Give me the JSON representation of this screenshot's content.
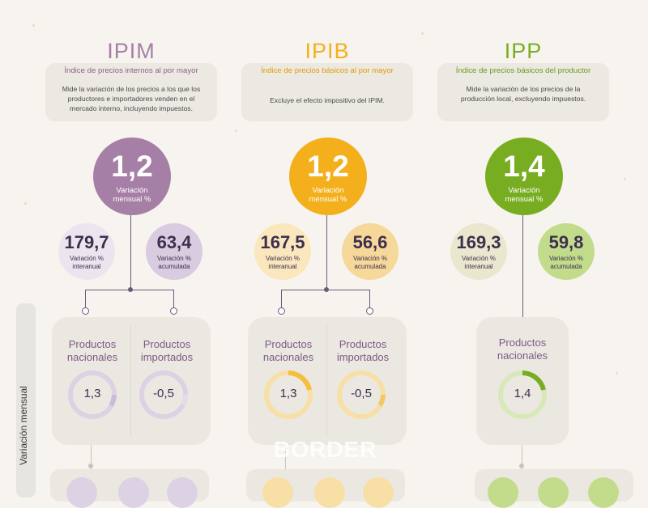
{
  "side_label": "Variación mensual",
  "watermark": "BORDER",
  "colors": {
    "ipim": "#a67fa6",
    "ipim_light": "#d9cbe0",
    "ipib": "#f4b01c",
    "ipib_light": "#f6d89a",
    "ipp": "#79ad21",
    "ipp_light": "#c3dc8c",
    "ipp_cream": "#eae7cf"
  },
  "ipim": {
    "title": "IPIM",
    "subtitle": "Índice de precios internos al por mayor",
    "desc": "Mide la variación de los precios a los que los productores e importadores venden en el mercado interno, incluyendo impuestos.",
    "main_value": "1,2",
    "main_label": "Variación mensual %",
    "interanual_value": "179,7",
    "interanual_label": "Variación % interanual",
    "acumulada_value": "63,4",
    "acumulada_label": "Variación % acumulada",
    "nacionales_label": "Productos nacionales",
    "nacionales_value": "1,3",
    "importados_label": "Productos importados",
    "importados_value": "-0,5"
  },
  "ipib": {
    "title": "IPIB",
    "subtitle": "Índice de precios básicos al por mayor",
    "desc": "Excluye el efecto impositivo del IPIM.",
    "main_value": "1,2",
    "main_label": "Variación mensual %",
    "interanual_value": "167,5",
    "interanual_label": "Variación % interanual",
    "acumulada_value": "56,6",
    "acumulada_label": "Variación % acumulada",
    "nacionales_label": "Productos nacionales",
    "nacionales_value": "1,3",
    "importados_label": "Productos importados",
    "importados_value": "-0,5"
  },
  "ipp": {
    "title": "IPP",
    "subtitle": "Índice de precios básicos del productor",
    "desc": "Mide la variación de los precios de la producción local, excluyendo impuestos.",
    "main_value": "1,4",
    "main_label": "Variación mensual %",
    "interanual_value": "169,3",
    "interanual_label": "Variación % interanual",
    "acumulada_value": "59,8",
    "acumulada_label": "Variación % acumulada",
    "nacionales_label": "Productos nacionales",
    "nacionales_value": "1,4"
  }
}
